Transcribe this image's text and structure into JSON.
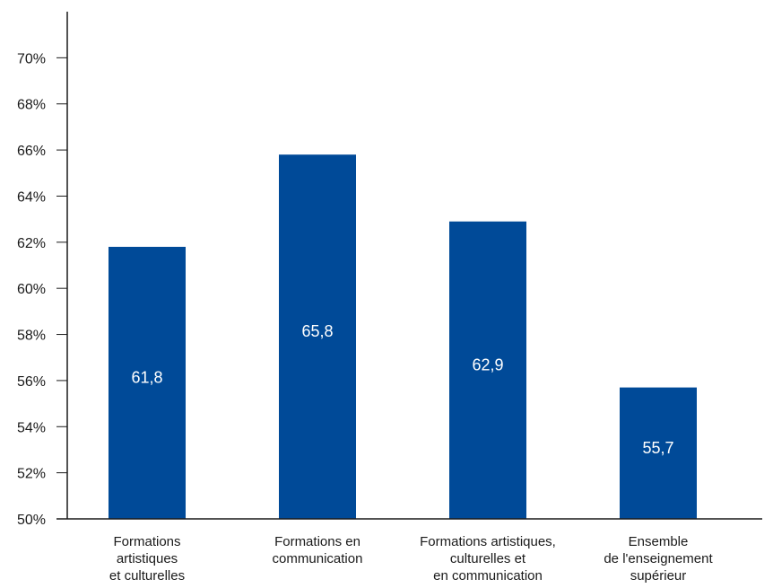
{
  "chart_data": {
    "type": "bar",
    "categories": [
      [
        "Formations",
        "artistiques",
        "et culturelles"
      ],
      [
        "Formations en",
        "communication"
      ],
      [
        "Formations artistiques,",
        "culturelles et",
        "en communication"
      ],
      [
        "Ensemble",
        "de l'enseignement",
        "supérieur"
      ]
    ],
    "values": [
      61.8,
      65.8,
      62.9,
      55.7
    ],
    "data_labels": [
      "61,8",
      "65,8",
      "62,9",
      "55,7"
    ],
    "ylim": [
      50,
      72
    ],
    "yticks": [
      50,
      52,
      54,
      56,
      58,
      60,
      62,
      64,
      66,
      68,
      70
    ],
    "ytick_labels": [
      "50%",
      "52%",
      "54%",
      "56%",
      "58%",
      "60%",
      "62%",
      "64%",
      "66%",
      "68%",
      "70%"
    ],
    "bar_color": "#004a98",
    "grid": false,
    "legend": "none"
  }
}
